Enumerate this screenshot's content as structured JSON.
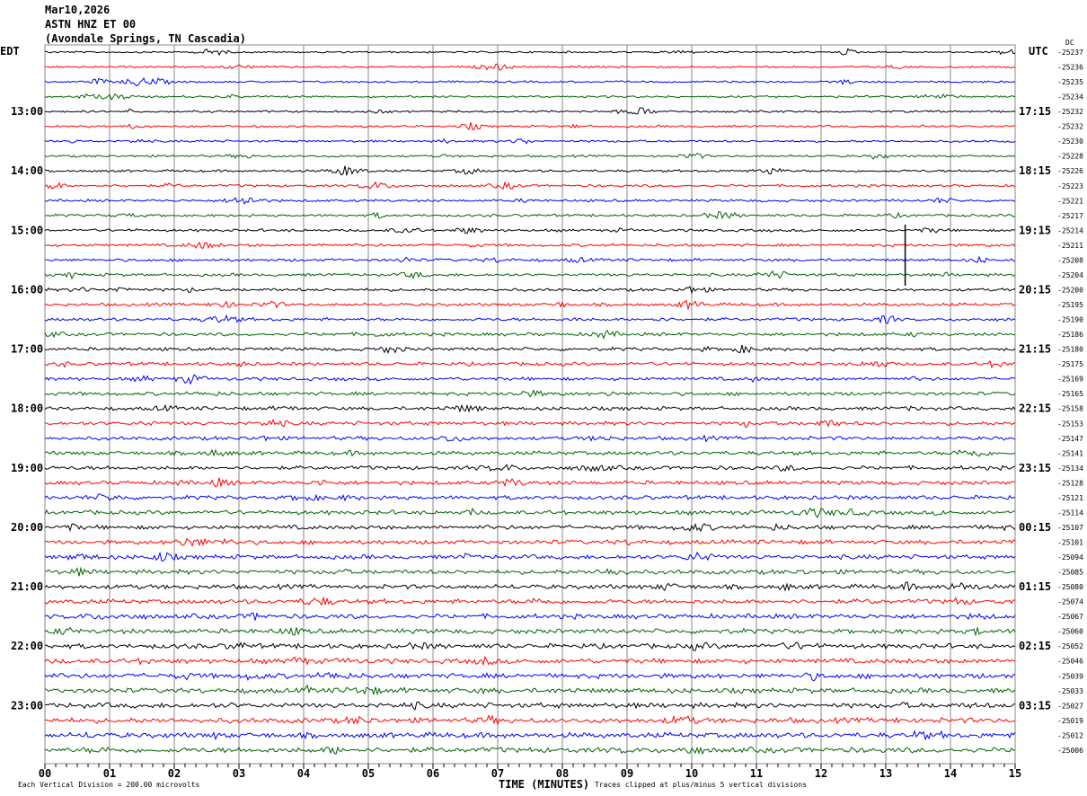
{
  "header": {
    "date": "Mar10,2026",
    "station": "ASTN HNZ ET 00",
    "location": "(Avondale Springs, TN Cascadia)"
  },
  "left_timezone": "EDT",
  "right_timezone": "UTC",
  "dc_label": "DC",
  "footer": {
    "scale_note": "Each Vertical Division =  200.00 microvolts",
    "clip_note": "Traces clipped at plus/minus 5 vertical divisions"
  },
  "chart_data": {
    "type": "line",
    "title": "",
    "xlabel": "TIME (MINUTES)",
    "xlim": [
      0,
      15
    ],
    "x_ticks": [
      "00",
      "01",
      "02",
      "03",
      "04",
      "05",
      "06",
      "07",
      "08",
      "09",
      "10",
      "11",
      "12",
      "13",
      "14",
      "15"
    ],
    "grid": true,
    "trace_colors": [
      "#000000",
      "#ff0000",
      "#0000ff",
      "#006400"
    ],
    "left_hour_labels": [
      "13:00",
      "14:00",
      "15:00",
      "16:00",
      "17:00",
      "18:00",
      "19:00",
      "20:00",
      "21:00",
      "22:00",
      "23:00"
    ],
    "right_hour_labels": [
      "17:15",
      "18:15",
      "19:15",
      "20:15",
      "21:15",
      "22:15",
      "23:15",
      "00:15",
      "01:15",
      "02:15",
      "03:15"
    ],
    "dc_offsets": [
      -25237,
      -25236,
      -25235,
      -25234,
      -25232,
      -25232,
      -25230,
      -25228,
      -25226,
      -25223,
      -25221,
      -25217,
      -25214,
      -25211,
      -25208,
      -25204,
      -25200,
      -25195,
      -25190,
      -25186,
      -25180,
      -25175,
      -25169,
      -25165,
      -25158,
      -25153,
      -25147,
      -25141,
      -25134,
      -25128,
      -25121,
      -25114,
      -25107,
      -25101,
      -25094,
      -25085,
      -25080,
      -25074,
      -25067,
      -25060,
      -25052,
      -25046,
      -25039,
      -25033,
      -25027,
      -25019,
      -25012,
      -25006
    ]
  }
}
